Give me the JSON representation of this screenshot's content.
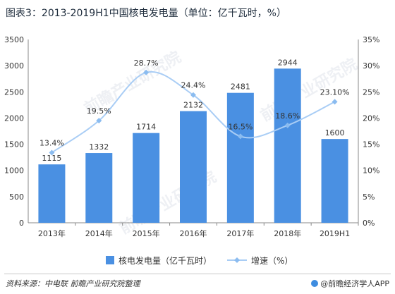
{
  "title": "图表3：2013-2019H1中国核电发电量（单位：亿千瓦时，%）",
  "footer": {
    "source": "资料来源：中电联 前瞻产业研究院整理",
    "brand": "@前瞻经济学人APP"
  },
  "watermark": "前瞻产业研究院",
  "colors": {
    "bar": "#4a90e2",
    "line": "#a9cdf5",
    "marker": "#8bbcf0",
    "grid": "#d9d9d9",
    "text": "#333333"
  },
  "chart_data": {
    "type": "bar",
    "categories": [
      "2013年",
      "2014年",
      "2015年",
      "2016年",
      "2017年",
      "2018年",
      "2019H1"
    ],
    "series": [
      {
        "name": "核电发电量（亿千瓦时）",
        "type": "bar",
        "axis": "left",
        "values": [
          1115,
          1332,
          1714,
          2132,
          2481,
          2944,
          1600
        ],
        "labels": [
          "1115",
          "1332",
          "1714",
          "2132",
          "2481",
          "2944",
          "1600"
        ]
      },
      {
        "name": "增速（%）",
        "type": "line",
        "axis": "right",
        "values": [
          13.4,
          19.5,
          28.7,
          24.4,
          16.5,
          18.6,
          23.1
        ],
        "labels": [
          "13.4%",
          "19.5%",
          "28.7%",
          "24.4%",
          "16.5%",
          "18.6%",
          "23.10%"
        ]
      }
    ],
    "ylim": [
      0,
      3500
    ],
    "yticks": [
      "0",
      "500",
      "1000",
      "1500",
      "2000",
      "2500",
      "3000",
      "3500"
    ],
    "y2lim": [
      0,
      35
    ],
    "y2ticks": [
      "0%",
      "5%",
      "10%",
      "15%",
      "20%",
      "25%",
      "30%",
      "35%"
    ],
    "grid": false,
    "legend": "bottom"
  }
}
